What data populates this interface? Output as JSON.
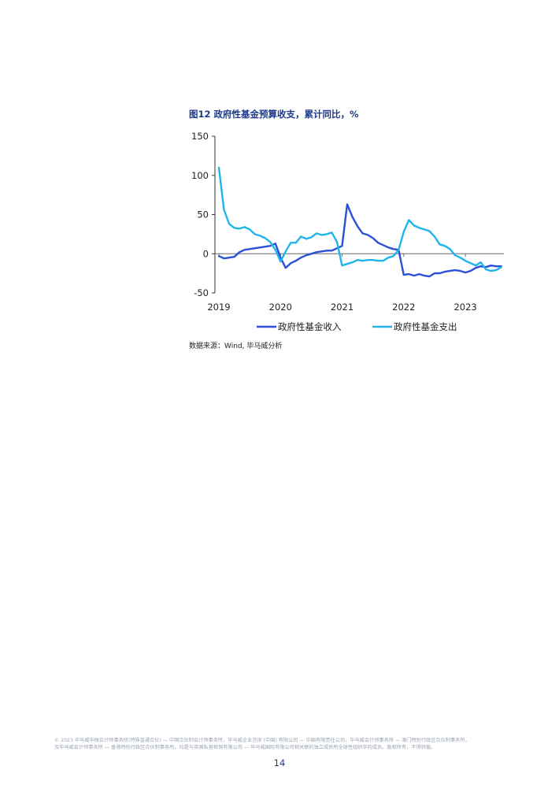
{
  "figure": {
    "title": "图12 政府性基金预算收支，累计同比，%",
    "source": "数据来源：Wind, 毕马威分析"
  },
  "chart_data": {
    "type": "line",
    "title": "图12 政府性基金预算收支，累计同比，%",
    "xlabel": "",
    "ylabel": "",
    "ylim": [
      -50,
      150
    ],
    "yticks": [
      -50,
      0,
      50,
      100,
      150
    ],
    "xlim": [
      2019.0,
      2023.625
    ],
    "xticks": [
      "2019",
      "2020",
      "2021",
      "2022",
      "2023"
    ],
    "legend_position": "bottom",
    "grid": false,
    "series": [
      {
        "name": "政府性基金收入",
        "color": "#2b4fd6",
        "x": [
          2019.0,
          2019.083,
          2019.167,
          2019.25,
          2019.333,
          2019.417,
          2019.5,
          2019.583,
          2019.667,
          2019.75,
          2019.833,
          2019.917,
          2020.0,
          2020.083,
          2020.167,
          2020.25,
          2020.333,
          2020.417,
          2020.5,
          2020.583,
          2020.667,
          2020.75,
          2020.833,
          2020.917,
          2021.0,
          2021.083,
          2021.167,
          2021.25,
          2021.333,
          2021.417,
          2021.5,
          2021.583,
          2021.667,
          2021.75,
          2021.833,
          2021.917,
          2022.0,
          2022.083,
          2022.167,
          2022.25,
          2022.333,
          2022.417,
          2022.5,
          2022.583,
          2022.667,
          2022.75,
          2022.833,
          2022.917,
          2023.0,
          2023.083,
          2023.167,
          2023.25,
          2023.333,
          2023.417,
          2023.5,
          2023.583
        ],
        "values": [
          -3,
          -6,
          -5,
          -4,
          2,
          5,
          6,
          7,
          8,
          9,
          10,
          13,
          -5,
          -18,
          -12,
          -9,
          -5,
          -2,
          0,
          2,
          3,
          4,
          4,
          7,
          10,
          63,
          47,
          35,
          26,
          24,
          20,
          14,
          11,
          8,
          6,
          5,
          -27,
          -26,
          -28,
          -26,
          -28,
          -29,
          -25,
          -25,
          -23,
          -22,
          -21,
          -22,
          -24,
          -22,
          -18,
          -16,
          -17,
          -15,
          -16,
          -16
        ]
      },
      {
        "name": "政府性基金支出",
        "color": "#1fb5ec",
        "x": [
          2019.0,
          2019.083,
          2019.167,
          2019.25,
          2019.333,
          2019.417,
          2019.5,
          2019.583,
          2019.667,
          2019.75,
          2019.833,
          2019.917,
          2020.0,
          2020.083,
          2020.167,
          2020.25,
          2020.333,
          2020.417,
          2020.5,
          2020.583,
          2020.667,
          2020.75,
          2020.833,
          2020.917,
          2021.0,
          2021.083,
          2021.167,
          2021.25,
          2021.333,
          2021.417,
          2021.5,
          2021.583,
          2021.667,
          2021.75,
          2021.833,
          2021.917,
          2022.0,
          2022.083,
          2022.167,
          2022.25,
          2022.333,
          2022.417,
          2022.5,
          2022.583,
          2022.667,
          2022.75,
          2022.833,
          2022.917,
          2023.0,
          2023.083,
          2023.167,
          2023.25,
          2023.333,
          2023.417,
          2023.5,
          2023.583
        ],
        "values": [
          110,
          56,
          38,
          33,
          32,
          34,
          31,
          25,
          23,
          20,
          15,
          5,
          -10,
          3,
          14,
          14,
          22,
          19,
          21,
          26,
          24,
          25,
          27,
          15,
          -15,
          -13,
          -11,
          -8,
          -9,
          -8,
          -8,
          -9,
          -9,
          -5,
          -3,
          5,
          28,
          43,
          36,
          33,
          31,
          29,
          22,
          12,
          10,
          6,
          -2,
          -5,
          -9,
          -12,
          -15,
          -11,
          -20,
          -22,
          -21,
          -17
        ]
      }
    ]
  },
  "footer": {
    "line1": "© 2023 毕马威华振会计师事务所(特殊普通合伙) — 中国合伙制会计师事务所，毕马威企业咨询 (中国) 有限公司 — 中国有限责任公司，毕马威会计师事务所 — 澳门特别行政区合伙制事务所，",
    "line2": "及毕马威会计师事务所 — 香港特别行政区合伙制事务所，均是与英国私营担保有限公司 — 毕马威国际有限公司相关联的独立成员所全球性组织中的成员。版权所有，不得转载。"
  },
  "page": {
    "number": "14"
  }
}
